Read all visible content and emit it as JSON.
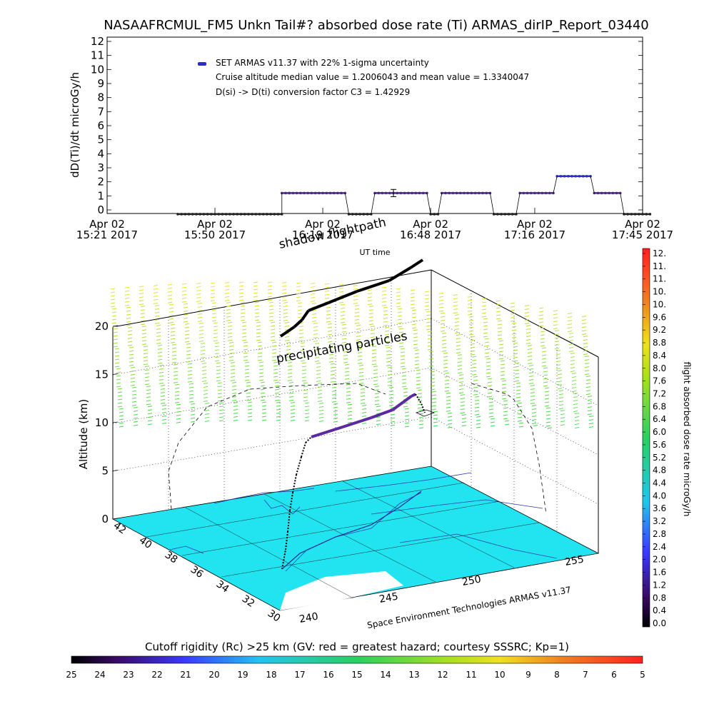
{
  "chart_data": [
    {
      "type": "scatter",
      "title": "NASAAFRCMUL_FM5 Unkn Tail#? absorbed dose rate (Ti) ARMAS_dirIP_Report_03440",
      "ylabel": "dD(Ti)/dt microGy/h",
      "xlabel": "UT time",
      "ylim": [
        0,
        12
      ],
      "yticks": [
        "0",
        "1",
        "2",
        "3",
        "4",
        "5",
        "6",
        "7",
        "8",
        "9",
        "10",
        "11",
        "12"
      ],
      "xlim_minutes": [
        0,
        144
      ],
      "xtick_minutes": [
        0,
        29,
        58,
        87,
        115,
        144
      ],
      "xticks": [
        {
          "l1": "Apr 02",
          "l2": "15:21 2017"
        },
        {
          "l1": "Apr 02",
          "l2": "15:50 2017"
        },
        {
          "l1": "Apr 02",
          "l2": "16:19 2017"
        },
        {
          "l1": "Apr 02",
          "l2": "16:48 2017"
        },
        {
          "l1": "Apr 02",
          "l2": "17:16 2017"
        },
        {
          "l1": "Apr 02",
          "l2": "17:45 2017"
        }
      ],
      "legend": [
        "SET ARMAS v11.37 with 22% 1-sigma uncertainty",
        "Cruise altitude median value = 1.2006043 and mean value = 1.3340047",
        "D(si) -> D(ti) conversion factor C3 = 1.42929"
      ],
      "series_color": "#2a2cc8",
      "segments": [
        {
          "x0": 19,
          "x1": 47,
          "y": -0.3
        },
        {
          "x0": 47,
          "x1": 49,
          "y": 1.2
        },
        {
          "x0": 49,
          "x1": 64,
          "y": 1.2
        },
        {
          "x0": 65,
          "x1": 71,
          "y": -0.3
        },
        {
          "x0": 72,
          "x1": 86,
          "y": 1.2
        },
        {
          "x0": 87,
          "x1": 89,
          "y": -0.3
        },
        {
          "x0": 90,
          "x1": 103,
          "y": 1.2
        },
        {
          "x0": 104,
          "x1": 110,
          "y": -0.3
        },
        {
          "x0": 111,
          "x1": 120,
          "y": 1.2
        },
        {
          "x0": 121,
          "x1": 130,
          "y": 2.4
        },
        {
          "x0": 131,
          "x1": 138,
          "y": 1.2
        },
        {
          "x0": 139,
          "x1": 146,
          "y": -0.3
        }
      ],
      "errorbar": {
        "x": 77,
        "y": 1.2,
        "err": 0.26
      }
    },
    {
      "type": "scatter3d",
      "zlabel": "Altitude (km)",
      "zticks": [
        "0",
        "5",
        "10",
        "15",
        "20"
      ],
      "lat_ticks": [
        "42",
        "40",
        "38",
        "36",
        "34",
        "32",
        "30"
      ],
      "lon_ticks": [
        "240",
        "245",
        "250",
        "255"
      ],
      "annotations": [
        "shadow flightpath",
        "precipitating particles",
        "Space Environment Technologies ARMAS v11.37"
      ],
      "colorbar": {
        "label": "flight absorbed dose rate microGy/h",
        "ticks": [
          "12.",
          "11.",
          "11.",
          "10.",
          "10.",
          "9.6",
          "9.2",
          "8.8",
          "8.4",
          "8.0",
          "7.6",
          "7.2",
          "6.8",
          "6.4",
          "6.0",
          "5.6",
          "5.2",
          "4.8",
          "4.4",
          "4.0",
          "3.6",
          "3.2",
          "2.8",
          "2.4",
          "2.0",
          "1.6",
          "1.2",
          "0.8",
          "0.4",
          "0.0"
        ]
      },
      "cutoff_colorbar": {
        "label": "Cutoff rigidity (Rc) >25 km (GV: red = greatest hazard; courtesy SSSRC; Kp=1)",
        "ticks": [
          "25",
          "24",
          "23",
          "22",
          "21",
          "20",
          "19",
          "18",
          "17",
          "16",
          "15",
          "14",
          "13",
          "12",
          "11",
          "10",
          "9",
          "8",
          "7",
          "6",
          "5"
        ]
      },
      "map_color": "#22e4f0"
    }
  ]
}
